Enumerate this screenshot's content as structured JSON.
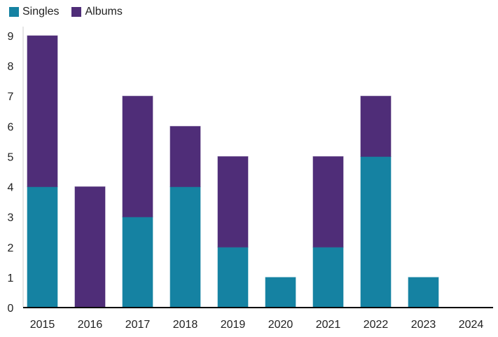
{
  "chart_data": {
    "type": "bar",
    "stacked": true,
    "title": "",
    "xlabel": "",
    "ylabel": "",
    "categories": [
      "2015",
      "2016",
      "2017",
      "2018",
      "2019",
      "2020",
      "2021",
      "2022",
      "2023",
      "2024"
    ],
    "series": [
      {
        "name": "Singles",
        "color": "#1582a2",
        "values": [
          4,
          0,
          3,
          4,
          2,
          1,
          2,
          5,
          1,
          0
        ]
      },
      {
        "name": "Albums",
        "color": "#4f2d78",
        "values": [
          5,
          4,
          4,
          2,
          3,
          0,
          3,
          2,
          0,
          0
        ]
      }
    ],
    "ylim": [
      0,
      9
    ],
    "yticks": [
      "0",
      "1",
      "2",
      "3",
      "4",
      "5",
      "6",
      "7",
      "8",
      "9"
    ],
    "legend": "top-left",
    "grid": false
  }
}
